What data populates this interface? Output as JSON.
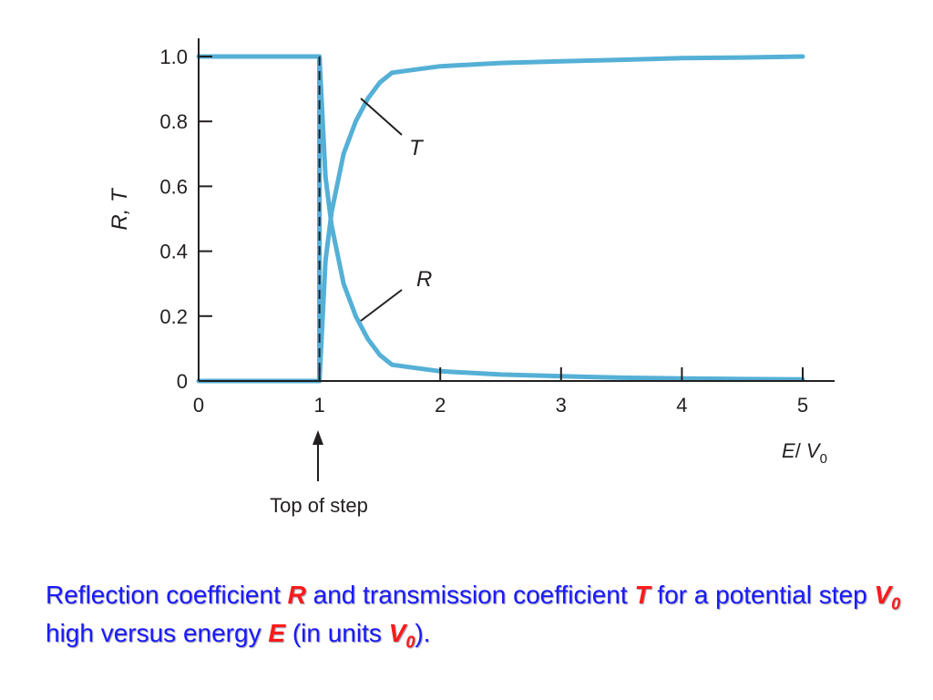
{
  "chart_data": {
    "type": "line",
    "xlabel_main": "E",
    "xlabel_sep": "/ ",
    "xlabel_var": "V",
    "xlabel_sub": "0",
    "ylabel": "R, T",
    "xlim": [
      0,
      5
    ],
    "ylim": [
      0,
      1.0
    ],
    "x_ticks": [
      "0",
      "1",
      "2",
      "3",
      "4",
      "5"
    ],
    "y_ticks": [
      "0",
      "0.2",
      "0.4",
      "0.6",
      "0.8",
      "1.0"
    ],
    "grid": false,
    "line_color": "#55b0d6",
    "series": [
      {
        "name": "T",
        "x": [
          0,
          1.0,
          1.0,
          1.05,
          1.1,
          1.2,
          1.3,
          1.4,
          1.5,
          1.6,
          1.8,
          2.0,
          2.5,
          3.0,
          3.5,
          4.0,
          4.5,
          5.0
        ],
        "y": [
          1.0,
          1.0,
          0.0,
          0.37,
          0.52,
          0.7,
          0.8,
          0.87,
          0.92,
          0.95,
          0.96,
          0.97,
          0.98,
          0.985,
          0.99,
          0.995,
          0.997,
          1.0
        ]
      },
      {
        "name": "R",
        "x": [
          0,
          1.0,
          1.0,
          1.05,
          1.1,
          1.2,
          1.3,
          1.4,
          1.5,
          1.6,
          1.8,
          2.0,
          2.5,
          3.0,
          3.5,
          4.0,
          4.5,
          5.0
        ],
        "y": [
          0.0,
          0.0,
          1.0,
          0.63,
          0.48,
          0.3,
          0.2,
          0.13,
          0.08,
          0.05,
          0.04,
          0.03,
          0.02,
          0.015,
          0.01,
          0.008,
          0.006,
          0.005
        ]
      }
    ],
    "step_marker_x": 1,
    "annotations": {
      "T_label": "T",
      "R_label": "R",
      "step_label": "Top of step"
    }
  },
  "caption": {
    "t1": "Reflection coefficient ",
    "R": "R",
    "t2": " and transmission coefficient ",
    "T": "T",
    "t3": " for a potential step ",
    "V1": "V",
    "V1sub": "0",
    "t4": " high versus energy ",
    "E": "E",
    "t5": " (in units ",
    "V2": "V",
    "V2sub": "0",
    "t6": ")."
  }
}
